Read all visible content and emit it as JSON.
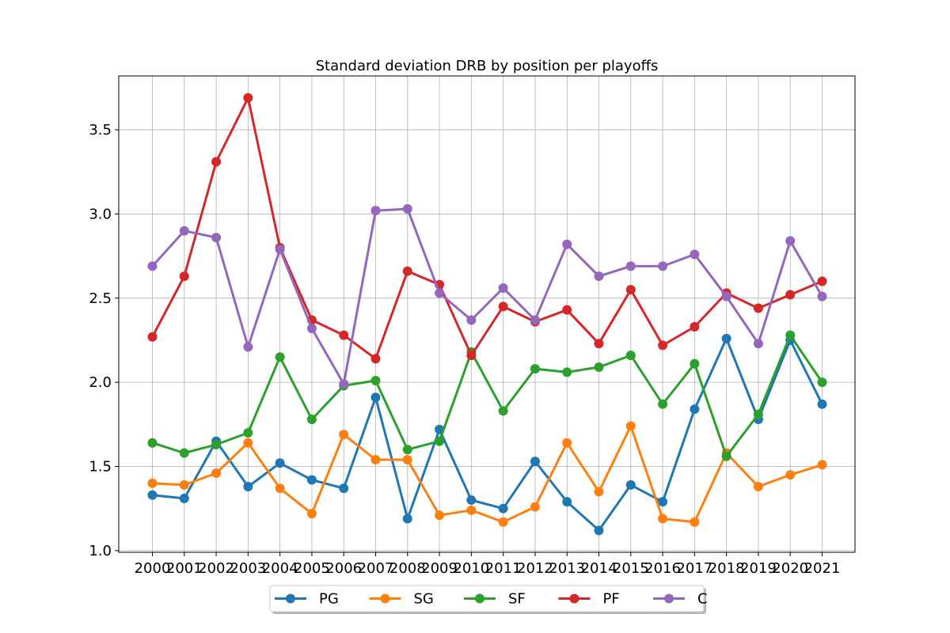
{
  "chart_data": {
    "type": "line",
    "title": "Standard deviation DRB by position per playoffs",
    "xlabel": "",
    "ylabel": "",
    "x": [
      "2000",
      "2001",
      "2002",
      "2003",
      "2004",
      "2005",
      "2006",
      "2007",
      "2008",
      "2009",
      "2010",
      "2011",
      "2012",
      "2013",
      "2014",
      "2015",
      "2016",
      "2017",
      "2018",
      "2019",
      "2020",
      "2021"
    ],
    "ylim": [
      0.99,
      3.82
    ],
    "yticks": [
      1.0,
      1.5,
      2.0,
      2.5,
      3.0,
      3.5
    ],
    "ytick_labels": [
      "1.0",
      "1.5",
      "2.0",
      "2.5",
      "3.0",
      "3.5"
    ],
    "grid": true,
    "legend_position": "bottom-center",
    "series": [
      {
        "name": "PG",
        "color": "#1f77b4",
        "values": [
          1.33,
          1.31,
          1.65,
          1.38,
          1.52,
          1.42,
          1.37,
          1.91,
          1.19,
          1.72,
          1.3,
          1.25,
          1.53,
          1.29,
          1.12,
          1.39,
          1.29,
          1.84,
          2.26,
          1.78,
          2.25,
          1.87
        ]
      },
      {
        "name": "SG",
        "color": "#ff7f0e",
        "values": [
          1.4,
          1.39,
          1.46,
          1.64,
          1.37,
          1.22,
          1.69,
          1.54,
          1.54,
          1.21,
          1.24,
          1.17,
          1.26,
          1.64,
          1.35,
          1.74,
          1.19,
          1.17,
          1.58,
          1.38,
          1.45,
          1.51
        ]
      },
      {
        "name": "SF",
        "color": "#2ca02c",
        "values": [
          1.64,
          1.58,
          1.63,
          1.7,
          2.15,
          1.78,
          1.98,
          2.01,
          1.6,
          1.65,
          2.18,
          1.83,
          2.08,
          2.06,
          2.09,
          2.16,
          1.87,
          2.11,
          1.56,
          1.81,
          2.28,
          2.0
        ]
      },
      {
        "name": "PF",
        "color": "#d62728",
        "values": [
          2.27,
          2.63,
          3.31,
          3.69,
          2.8,
          2.37,
          2.28,
          2.14,
          2.66,
          2.58,
          2.16,
          2.45,
          2.36,
          2.43,
          2.23,
          2.55,
          2.22,
          2.33,
          2.53,
          2.44,
          2.52,
          2.6
        ]
      },
      {
        "name": "C",
        "color": "#9467bd",
        "values": [
          2.69,
          2.9,
          2.86,
          2.21,
          2.79,
          2.32,
          1.99,
          3.02,
          3.03,
          2.53,
          2.37,
          2.56,
          2.37,
          2.82,
          2.63,
          2.69,
          2.69,
          2.76,
          2.51,
          2.23,
          2.84,
          2.51
        ]
      }
    ]
  }
}
